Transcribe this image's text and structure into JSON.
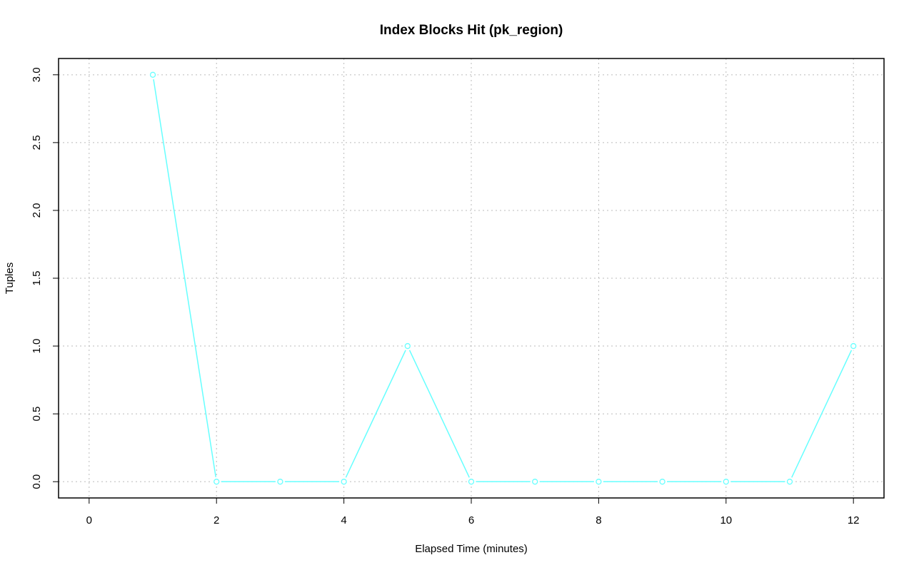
{
  "chart_data": {
    "type": "line",
    "title": "Index Blocks Hit (pk_region)",
    "xlabel": "Elapsed Time (minutes)",
    "ylabel": "Tuples",
    "x": [
      1,
      2,
      3,
      4,
      5,
      6,
      7,
      8,
      9,
      10,
      11,
      12
    ],
    "values": [
      3,
      0,
      0,
      0,
      1,
      0,
      0,
      0,
      0,
      0,
      0,
      1
    ],
    "color": "#66ffff",
    "xlim": [
      -0.48,
      12.48
    ],
    "ylim": [
      -0.12,
      3.12
    ],
    "xticks": [
      0,
      2,
      4,
      6,
      8,
      10,
      12
    ],
    "yticks": [
      {
        "value": 0,
        "label": "0.0"
      },
      {
        "value": 0.5,
        "label": "0.5"
      },
      {
        "value": 1,
        "label": "1.0"
      },
      {
        "value": 1.5,
        "label": "1.5"
      },
      {
        "value": 2,
        "label": "2.0"
      },
      {
        "value": 2.5,
        "label": "2.5"
      },
      {
        "value": 3,
        "label": "3.0"
      }
    ],
    "grid": true
  }
}
